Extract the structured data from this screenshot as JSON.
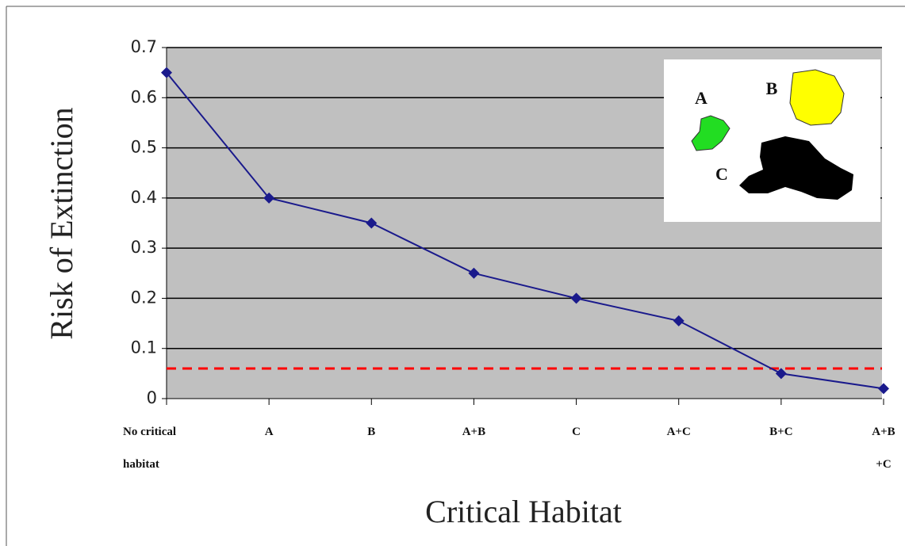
{
  "chart_data": {
    "type": "line",
    "x_label": "Critical Habitat",
    "y_label": "Risk of Extinction",
    "categories": [
      "No critical\nhabitat",
      "A",
      "B",
      "A+B",
      "C",
      "A+C",
      "B+C",
      "A+B\n+C"
    ],
    "series": [
      {
        "color": "#1a1a8c",
        "values": [
          0.65,
          0.4,
          0.35,
          0.25,
          0.2,
          0.155,
          0.05,
          0.02
        ]
      }
    ],
    "threshold": 0.06,
    "threshold_color": "#ff0000",
    "ylim": [
      0,
      0.7
    ],
    "yticks": [
      0,
      0.1,
      0.2,
      0.3,
      0.4,
      0.5,
      0.6,
      0.7
    ],
    "grid": true,
    "inset_labels": [
      "A",
      "B",
      "C"
    ]
  }
}
